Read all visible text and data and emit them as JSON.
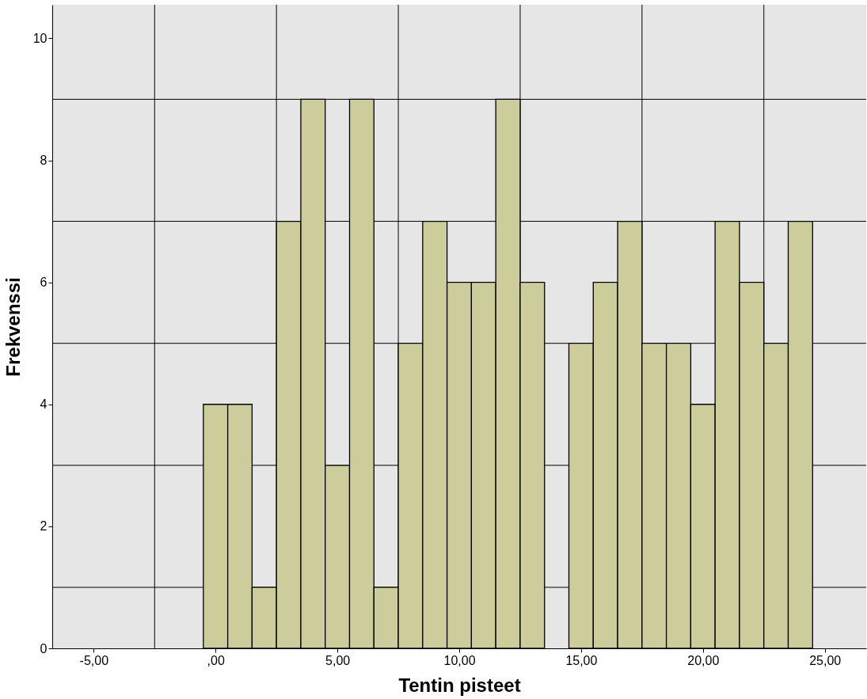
{
  "chart_data": {
    "type": "histogram",
    "xlabel": "Tentin pisteet",
    "ylabel": "Frekvenssi",
    "bins": [
      -0.5,
      0.5,
      1.5,
      2.5,
      3.5,
      4.5,
      5.5,
      6.5,
      7.5,
      8.5,
      9.5,
      10.5,
      11.5,
      12.5,
      13.5,
      14.5,
      15.5,
      16.5,
      17.5,
      18.5,
      19.5,
      20.5,
      21.5,
      22.5,
      23.5,
      24.5
    ],
    "values": [
      4,
      4,
      1,
      7,
      9,
      3,
      9,
      1,
      5,
      7,
      6,
      6,
      9,
      6,
      0,
      5,
      6,
      7,
      5,
      5,
      4,
      7,
      6,
      5,
      7
    ],
    "color": "#cdcd9b",
    "xlim": [
      -6.7,
      26.7
    ],
    "ylim": [
      0,
      10.55
    ],
    "xticks": [
      {
        "value": -5,
        "label": "-5,00"
      },
      {
        "value": -2.5,
        "label": null
      },
      {
        "value": 0,
        "label": ",00"
      },
      {
        "value": 2.5,
        "label": null
      },
      {
        "value": 5,
        "label": "5,00"
      },
      {
        "value": 7.5,
        "label": null
      },
      {
        "value": 10,
        "label": "10,00"
      },
      {
        "value": 12.5,
        "label": null
      },
      {
        "value": 15,
        "label": "15,00"
      },
      {
        "value": 17.5,
        "label": null
      },
      {
        "value": 20,
        "label": "20,00"
      },
      {
        "value": 22.5,
        "label": null
      },
      {
        "value": 25,
        "label": "25,00"
      }
    ],
    "yticks": [
      0,
      {
        "value": 1,
        "label": null
      },
      2,
      {
        "value": 3,
        "label": null
      },
      4,
      {
        "value": 5,
        "label": null
      },
      6,
      {
        "value": 7,
        "label": null
      },
      8,
      {
        "value": 9,
        "label": null
      },
      10
    ],
    "grid": true
  }
}
